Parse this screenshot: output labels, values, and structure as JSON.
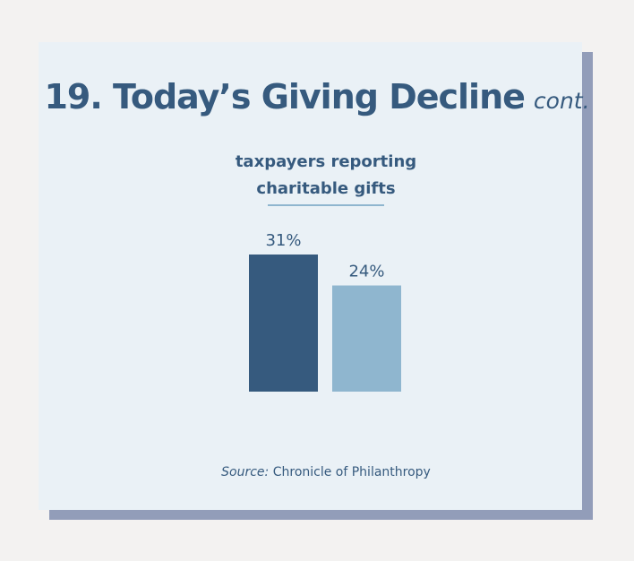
{
  "title": {
    "main": "19. Today’s Giving Decline",
    "sub": "cont."
  },
  "source": {
    "label": "Source:",
    "text": "Chronicle of Philanthropy"
  },
  "colors": {
    "background": "#f3f2f1",
    "card": "#eaf1f6",
    "shadow": "#929db9",
    "text": "#365a7e",
    "bar_dark": "#365a7e",
    "bar_light": "#8fb6cf"
  },
  "chart_data": {
    "type": "bar",
    "title": "taxpayers reporting charitable gifts",
    "title_lines": [
      "taxpayers reporting",
      "charitable gifts"
    ],
    "categories": [
      "",
      ""
    ],
    "values": [
      31,
      24
    ],
    "value_labels": [
      "31%",
      "24%"
    ],
    "bar_colors": [
      "#365a7e",
      "#8fb6cf"
    ],
    "unit": "%",
    "xlabel": "",
    "ylabel": "",
    "ylim": [
      0,
      31
    ],
    "grid": false,
    "legend": "none"
  }
}
